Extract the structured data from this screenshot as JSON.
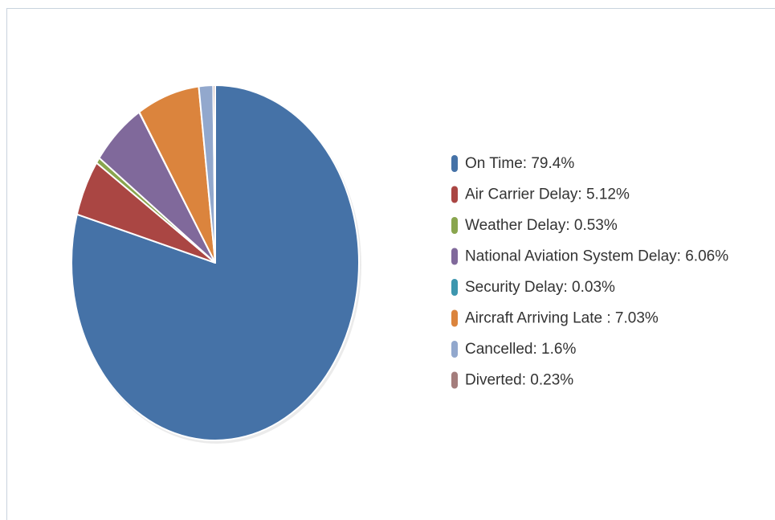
{
  "chart_data": {
    "type": "pie",
    "categories": [
      "On Time: 79.4%",
      "Air Carrier Delay: 5.12%",
      "Weather Delay: 0.53%",
      "National Aviation System Delay: 6.06%",
      "Security Delay: 0.03%",
      "Aircraft Arriving Late : 7.03%",
      "Cancelled: 1.6%",
      "Diverted: 0.23%"
    ],
    "values": [
      79.4,
      5.12,
      0.53,
      6.06,
      0.03,
      7.03,
      1.6,
      0.23
    ],
    "colors": [
      "#4572a7",
      "#aa4643",
      "#89a54e",
      "#80699b",
      "#3d96ae",
      "#db843d",
      "#92a8cd",
      "#a47d7c"
    ],
    "legend": "right"
  }
}
